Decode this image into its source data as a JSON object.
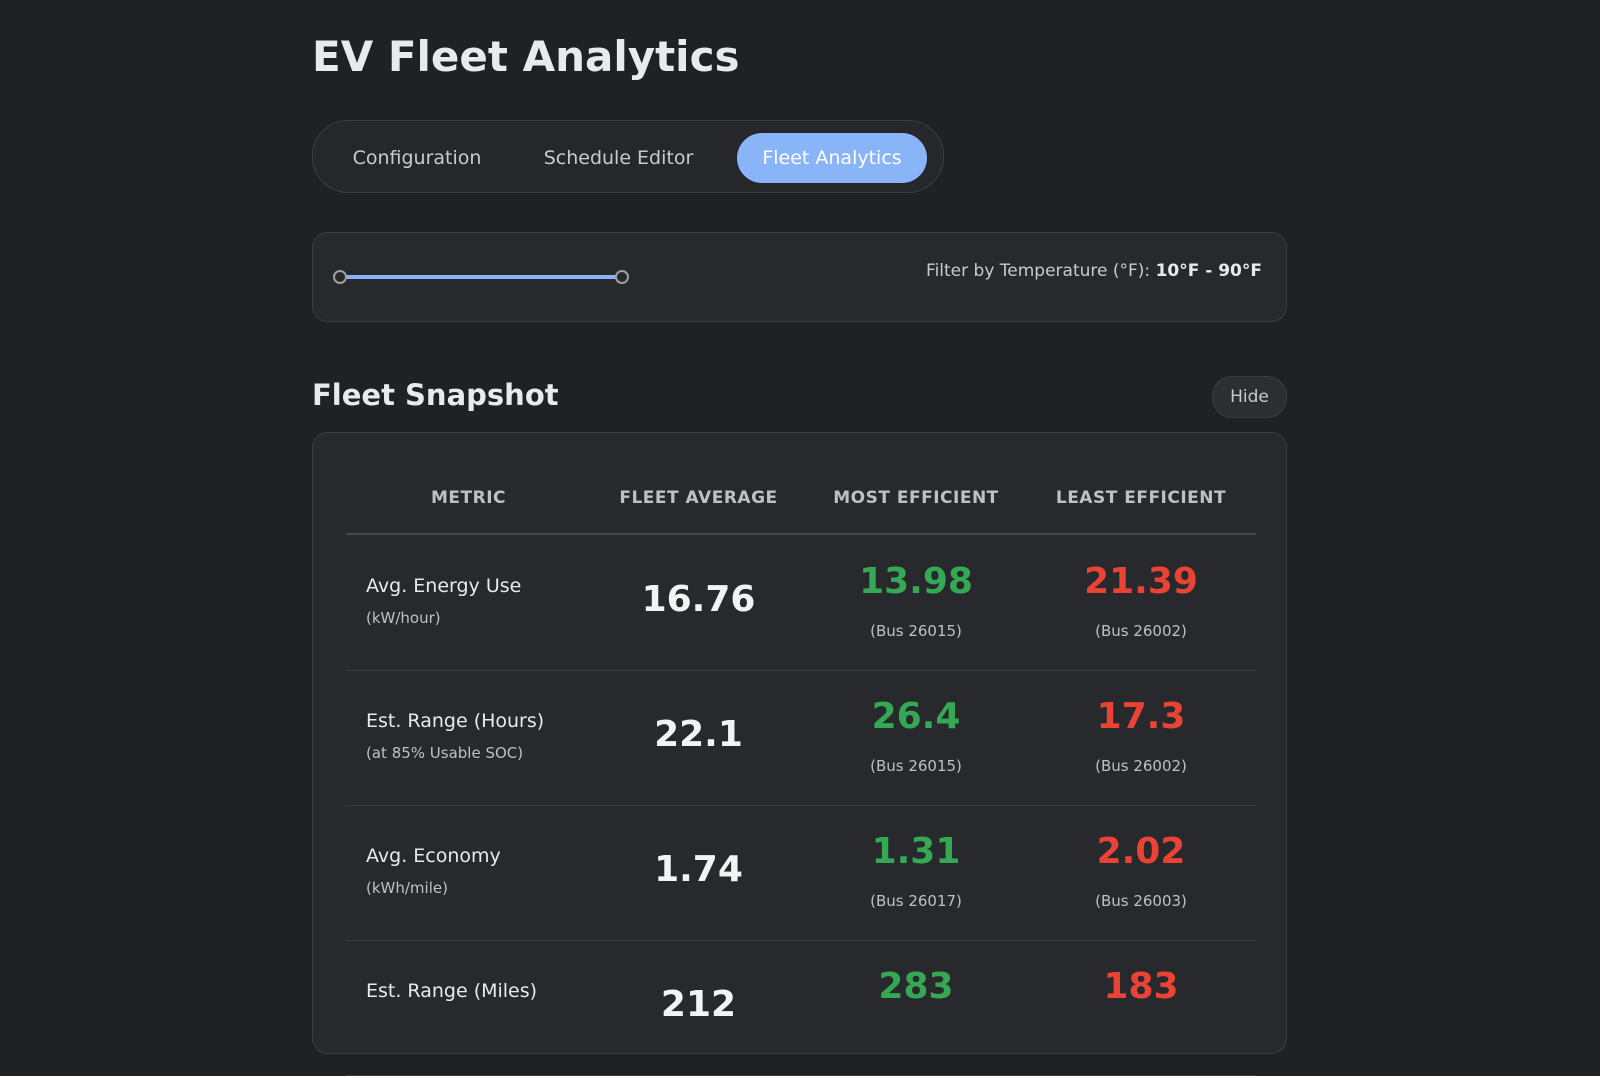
{
  "header": {
    "title": "EV Fleet Analytics"
  },
  "tabs": [
    "Configuration",
    "Schedule Editor",
    "Fleet Analytics"
  ],
  "active_tab": 2,
  "filter": {
    "label": "Filter by Temperature (°F):",
    "range": "10°F - 90°F"
  },
  "section": {
    "title": "Fleet Snapshot",
    "toggle": "Hide"
  },
  "table": {
    "columns": [
      "METRIC",
      "FLEET AVERAGE",
      "MOST EFFICIENT",
      "LEAST EFFICIENT"
    ],
    "rows": [
      {
        "metric": "Avg. Energy Use",
        "unit": "(kW/hour)",
        "average": "16.76",
        "most": {
          "value": "13.98",
          "bus": "(Bus 26015)"
        },
        "least": {
          "value": "21.39",
          "bus": "(Bus 26002)"
        }
      },
      {
        "metric": "Est. Range (Hours)",
        "unit": "(at 85% Usable SOC)",
        "average": "22.1",
        "most": {
          "value": "26.4",
          "bus": "(Bus 26015)"
        },
        "least": {
          "value": "17.3",
          "bus": "(Bus 26002)"
        }
      },
      {
        "metric": "Avg. Economy",
        "unit": "(kWh/mile)",
        "average": "1.74",
        "most": {
          "value": "1.31",
          "bus": "(Bus 26017)"
        },
        "least": {
          "value": "2.02",
          "bus": "(Bus 26003)"
        }
      },
      {
        "metric": "Est. Range (Miles)",
        "average": "212",
        "most": {
          "value": "283"
        },
        "least": {
          "value": "183"
        }
      }
    ]
  }
}
